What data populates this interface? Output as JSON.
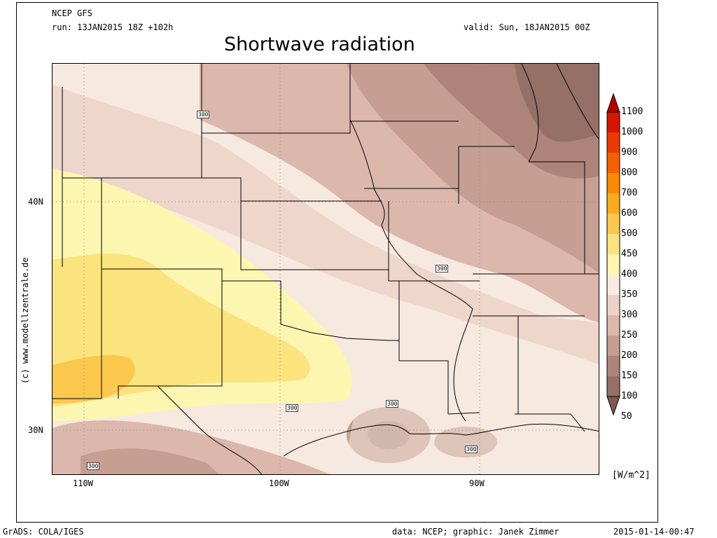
{
  "header": {
    "model": "NCEP GFS",
    "run": "run: 13JAN2015 18Z +102h",
    "valid": "valid: Sun, 18JAN2015 00Z",
    "title": "Shortwave radiation"
  },
  "axes": {
    "lon_labels": [
      "110W",
      "100W",
      "90W"
    ],
    "lat_labels": [
      "40N",
      "30N"
    ]
  },
  "credit_vertical": "(c) www.modellzentrale.de",
  "contour_labels": [
    "300",
    "300",
    "300",
    "300",
    "300",
    "300"
  ],
  "colorbar": {
    "units": "[W/m^2]",
    "ticks": [
      "1100",
      "1000",
      "900",
      "800",
      "700",
      "600",
      "500",
      "450",
      "400",
      "350",
      "300",
      "250",
      "200",
      "150",
      "100",
      "50"
    ],
    "colors": [
      "#b50000",
      "#d81400",
      "#ea3a00",
      "#f56000",
      "#fb8a00",
      "#fbab1d",
      "#fbc84e",
      "#fbe37e",
      "#fdf6b0",
      "#f8ece2",
      "#ecd2c8",
      "#dbb7ac",
      "#c69e92",
      "#ae847a",
      "#957067",
      "#7c5a50"
    ]
  },
  "footer": {
    "left": "GrADS: COLA/IGES",
    "center": "data: NCEP; graphic: Janek Zimmer",
    "right": "2015-01-14-00:47"
  }
}
